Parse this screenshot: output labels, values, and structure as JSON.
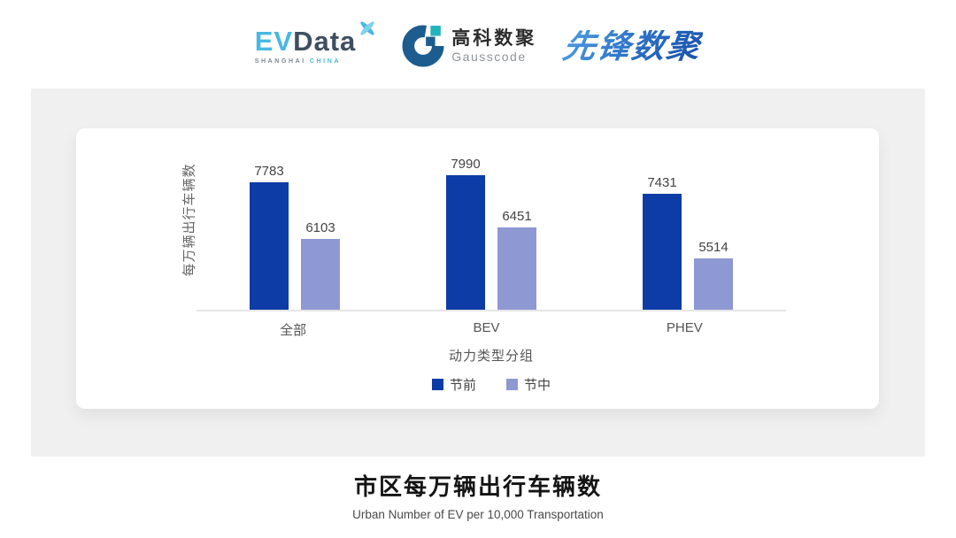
{
  "logos": {
    "evdata": {
      "ev": "EV",
      "data": "Data",
      "sub_left": "SHANGHAI",
      "sub_right": "CHINA"
    },
    "gausscode": {
      "cn": "高科数聚",
      "en": "Gausscode"
    },
    "pioneer": {
      "text": "先锋数聚"
    }
  },
  "chart_data": {
    "type": "bar",
    "title": "市区每万辆出行车辆数",
    "subtitle": "Urban Number of EV per 10,000 Transportation",
    "categories": [
      "全部",
      "BEV",
      "PHEV"
    ],
    "series": [
      {
        "name": "节前",
        "color": "#0e3ca6",
        "values": [
          7783,
          7990,
          7431
        ]
      },
      {
        "name": "节中",
        "color": "#8e99d3",
        "values": [
          6103,
          6451,
          5514
        ]
      }
    ],
    "xlabel": "动力类型分组",
    "ylabel": "每万辆出行车辆数",
    "ylim": [
      3980,
      8420
    ],
    "grid": false,
    "legend_position": "bottom",
    "value_labels": true,
    "axis_line_color": "#e5e5e5"
  }
}
